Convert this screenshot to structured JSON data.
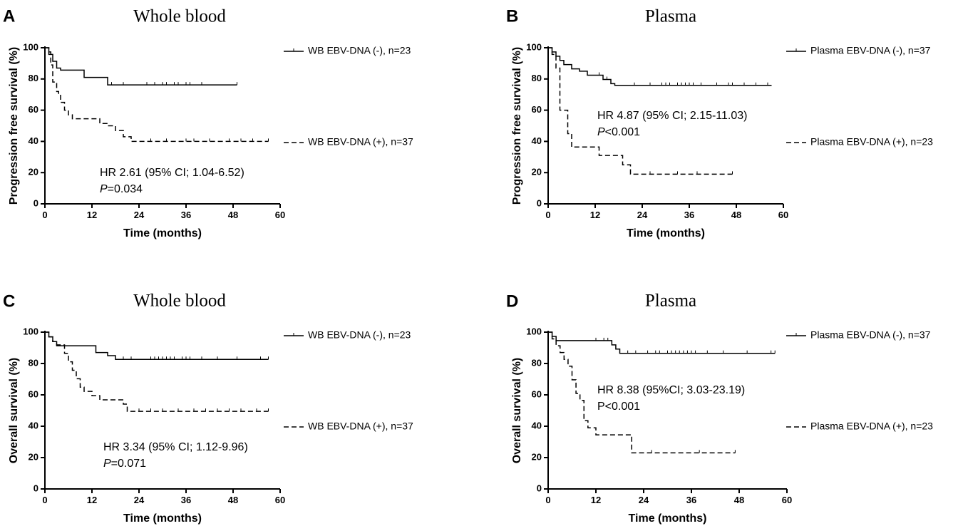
{
  "chart_data": [
    {
      "type": "line",
      "panel": "A",
      "title": "Whole blood",
      "xlabel": "Time (months)",
      "ylabel": "Progression free survival (%)",
      "xlim": [
        0,
        60
      ],
      "ylim": [
        0,
        100
      ],
      "xticks": [
        0,
        12,
        24,
        36,
        48,
        60
      ],
      "yticks": [
        0,
        20,
        40,
        60,
        80,
        100
      ],
      "annotation": {
        "line1": "HR 2.61 (95% CI; 1.04-6.52)",
        "p_symbol": "P",
        "p_value": "=0.034"
      },
      "series": [
        {
          "name": "WB EBV-DNA (-),  n=23",
          "style": "solid",
          "x": [
            0,
            1,
            2,
            3,
            4,
            10,
            16,
            49
          ],
          "y": [
            100,
            95.7,
            91.3,
            87.0,
            85.7,
            81.0,
            76.2,
            76.2
          ],
          "censored_x": [
            17,
            20,
            26,
            28,
            30,
            31,
            33,
            34,
            36,
            37,
            40,
            49
          ]
        },
        {
          "name": "WB EBV-DNA (+), n=37",
          "style": "dashed",
          "x": [
            0,
            1,
            1.5,
            2,
            3,
            3.5,
            4,
            5,
            6,
            7,
            12,
            14,
            16,
            18,
            20,
            22,
            57
          ],
          "y": [
            100,
            97.3,
            89,
            78,
            72,
            70,
            65,
            60,
            57,
            54.5,
            54.5,
            51.5,
            50,
            47,
            43,
            40,
            40
          ],
          "censored_x": [
            27,
            31,
            36,
            38,
            42,
            47,
            50,
            53,
            57
          ]
        }
      ]
    },
    {
      "type": "line",
      "panel": "B",
      "title": "Plasma",
      "xlabel": "Time (months)",
      "ylabel": "Progression free survival (%)",
      "xlim": [
        0,
        60
      ],
      "ylim": [
        0,
        100
      ],
      "xticks": [
        0,
        12,
        24,
        36,
        48,
        60
      ],
      "yticks": [
        0,
        20,
        40,
        60,
        80,
        100
      ],
      "annotation": {
        "line1": "HR 4.87 (95% CI; 2.15-11.03)",
        "p_symbol": "P",
        "p_value": "<0.001"
      },
      "series": [
        {
          "name": "Plasma EBV-DNA (-),  n=37",
          "style": "solid",
          "x": [
            0,
            1,
            2,
            3,
            4,
            6,
            8,
            10,
            14,
            16,
            17,
            57
          ],
          "y": [
            100,
            97.3,
            94.6,
            91.9,
            89.2,
            86.5,
            85.0,
            82.4,
            79.7,
            77.0,
            75.9,
            75.9
          ],
          "censored_x": [
            13,
            15,
            22,
            26,
            29,
            30,
            31,
            33,
            34,
            35,
            36,
            37,
            39,
            43,
            46,
            47,
            50,
            53,
            56
          ]
        },
        {
          "name": "Plasma EBV-DNA (+), n=23",
          "style": "dashed",
          "x": [
            0,
            1,
            2,
            3,
            4,
            5,
            6,
            13,
            19,
            21,
            47
          ],
          "y": [
            100,
            95.7,
            87,
            60,
            60,
            45,
            36.4,
            31,
            25,
            19,
            19
          ],
          "censored_x": [
            26,
            33,
            38,
            47
          ]
        }
      ]
    },
    {
      "type": "line",
      "panel": "C",
      "title": "Whole blood",
      "xlabel": "Time (months)",
      "ylabel": "Overall survival (%)",
      "xlim": [
        0,
        60
      ],
      "ylim": [
        0,
        100
      ],
      "xticks": [
        0,
        12,
        24,
        36,
        48,
        60
      ],
      "yticks": [
        0,
        20,
        40,
        60,
        80,
        100
      ],
      "annotation": {
        "line1": "HR 3.34 (95% CI; 1.12-9.96)",
        "p_symbol": "P",
        "p_value": "=0.071"
      },
      "series": [
        {
          "name": "WB EBV-DNA (-),  n=23",
          "style": "solid",
          "x": [
            0,
            1,
            2,
            3,
            4,
            13,
            16,
            18,
            57
          ],
          "y": [
            100,
            97,
            94,
            91.3,
            91.3,
            87.0,
            85.0,
            82.6,
            82.6
          ],
          "censored_x": [
            20,
            22,
            27,
            28,
            29,
            30,
            31,
            32,
            33,
            35,
            36,
            37,
            40,
            44,
            49,
            55,
            57
          ]
        },
        {
          "name": "WB EBV-DNA (+), n=37",
          "style": "dashed",
          "x": [
            0,
            1,
            2,
            3,
            5,
            6,
            7,
            8,
            9,
            10,
            12,
            14,
            16,
            20,
            21,
            57
          ],
          "y": [
            100,
            97,
            94,
            91.9,
            86.5,
            81.1,
            75.7,
            70.3,
            64.9,
            62.2,
            59.5,
            56.8,
            56.8,
            54.1,
            49.5,
            49.5
          ],
          "censored_x": [
            24,
            27,
            30,
            34,
            38,
            41,
            44,
            47,
            50,
            54,
            57
          ]
        }
      ]
    },
    {
      "type": "line",
      "panel": "D",
      "title": "Plasma",
      "xlabel": "Time (months)",
      "ylabel": "Overall survival (%)",
      "xlim": [
        0,
        60
      ],
      "ylim": [
        0,
        100
      ],
      "xticks": [
        0,
        12,
        24,
        36,
        48,
        60
      ],
      "yticks": [
        0,
        20,
        40,
        60,
        80,
        100
      ],
      "annotation": {
        "line1": "HR 8.38 (95%CI; 3.03-23.19)",
        "p_symbol": "",
        "p_value": "P<0.001"
      },
      "series": [
        {
          "name": "Plasma EBV-DNA (-),  n=37",
          "style": "solid",
          "x": [
            0,
            1,
            2,
            4,
            16,
            17,
            18,
            19,
            57
          ],
          "y": [
            100,
            97.3,
            94.6,
            94.6,
            91.9,
            89.2,
            86.5,
            86.5,
            86.5
          ],
          "censored_x": [
            12,
            14,
            15,
            20,
            22,
            25,
            27,
            28,
            30,
            31,
            32,
            33,
            34,
            35,
            36,
            37,
            40,
            44,
            50,
            56,
            57
          ]
        },
        {
          "name": "Plasma EBV-DNA (+), n=23",
          "style": "dashed",
          "x": [
            0,
            1,
            2,
            3,
            4,
            5,
            6,
            7,
            8,
            9,
            10,
            12,
            21,
            47
          ],
          "y": [
            100,
            95.7,
            91.3,
            87,
            82.6,
            78.3,
            69.6,
            60.9,
            56.5,
            43.5,
            39,
            34.5,
            23,
            23
          ],
          "censored_x": [
            26,
            38,
            47
          ]
        }
      ]
    }
  ]
}
